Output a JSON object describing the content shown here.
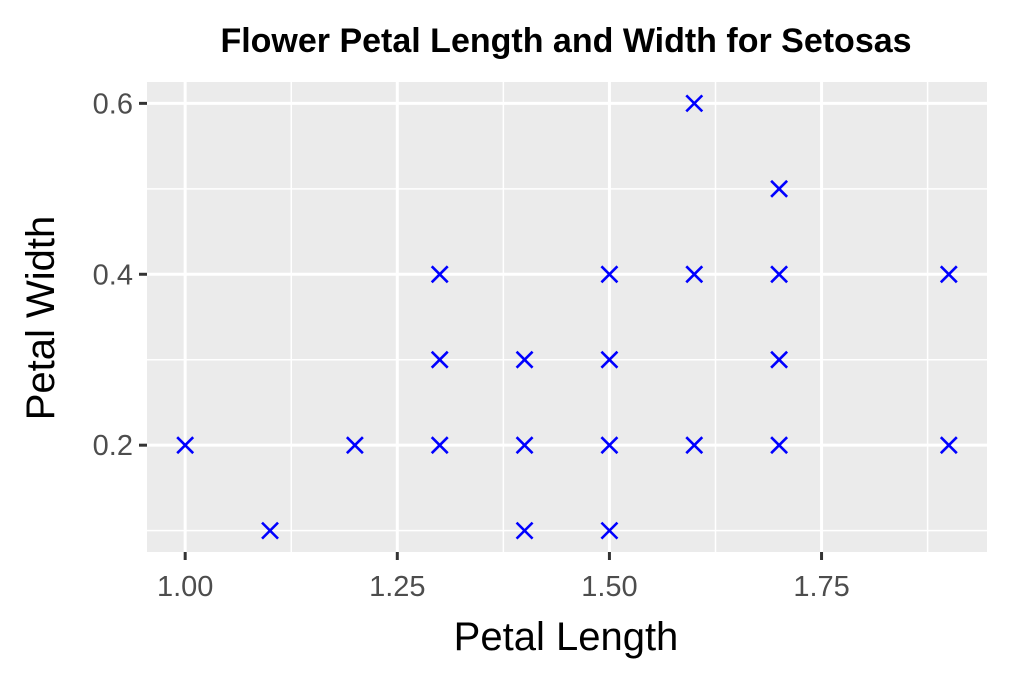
{
  "chart_data": {
    "type": "scatter",
    "title": "Flower Petal Length and Width for Setosas",
    "xlabel": "Petal Length",
    "ylabel": "Petal Width",
    "xlim": [
      0.955,
      1.945
    ],
    "ylim": [
      0.075,
      0.625
    ],
    "x_ticks": [
      1.0,
      1.25,
      1.5,
      1.75
    ],
    "x_tick_labels": [
      "1.00",
      "1.25",
      "1.50",
      "1.75"
    ],
    "x_minor_ticks": [
      1.125,
      1.375,
      1.625,
      1.875
    ],
    "y_ticks": [
      0.2,
      0.4,
      0.6
    ],
    "y_tick_labels": [
      "0.2",
      "0.4",
      "0.6"
    ],
    "y_minor_ticks": [
      0.1,
      0.3,
      0.5
    ],
    "grid": true,
    "panel_color": "#ebebeb",
    "marker": "x",
    "marker_color": "#0000ff",
    "points": [
      {
        "x": 1.0,
        "y": 0.2
      },
      {
        "x": 1.1,
        "y": 0.1
      },
      {
        "x": 1.2,
        "y": 0.2
      },
      {
        "x": 1.3,
        "y": 0.2
      },
      {
        "x": 1.3,
        "y": 0.3
      },
      {
        "x": 1.3,
        "y": 0.4
      },
      {
        "x": 1.4,
        "y": 0.1
      },
      {
        "x": 1.4,
        "y": 0.2
      },
      {
        "x": 1.4,
        "y": 0.3
      },
      {
        "x": 1.5,
        "y": 0.1
      },
      {
        "x": 1.5,
        "y": 0.2
      },
      {
        "x": 1.5,
        "y": 0.3
      },
      {
        "x": 1.5,
        "y": 0.4
      },
      {
        "x": 1.6,
        "y": 0.2
      },
      {
        "x": 1.6,
        "y": 0.4
      },
      {
        "x": 1.6,
        "y": 0.6
      },
      {
        "x": 1.7,
        "y": 0.2
      },
      {
        "x": 1.7,
        "y": 0.3
      },
      {
        "x": 1.7,
        "y": 0.4
      },
      {
        "x": 1.7,
        "y": 0.5
      },
      {
        "x": 1.9,
        "y": 0.2
      },
      {
        "x": 1.9,
        "y": 0.4
      }
    ]
  }
}
